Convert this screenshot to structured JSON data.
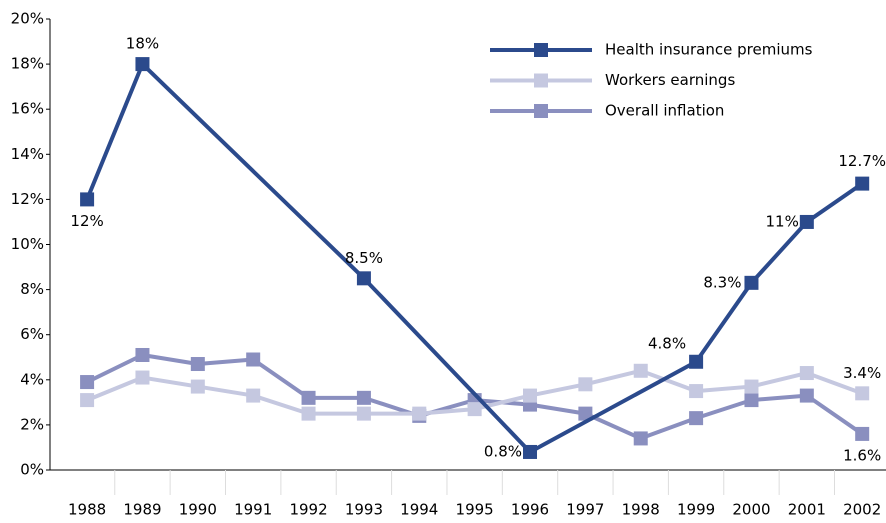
{
  "chart_data": {
    "type": "line",
    "xlim": [
      1987.33,
      2002.43
    ],
    "xticks": [
      1988,
      1989,
      1990,
      1991,
      1992,
      1993,
      1994,
      1995,
      1996,
      1997,
      1998,
      1999,
      2000,
      2001,
      2002
    ],
    "ylim": [
      0,
      20
    ],
    "yticks": [
      {
        "value": 0,
        "label": "0%"
      },
      {
        "value": 2,
        "label": "2%"
      },
      {
        "value": 4,
        "label": "4%"
      },
      {
        "value": 6,
        "label": "6%"
      },
      {
        "value": 8,
        "label": "8%"
      },
      {
        "value": 10,
        "label": "10%"
      },
      {
        "value": 12,
        "label": "12%"
      },
      {
        "value": 14,
        "label": "14%"
      },
      {
        "value": 16,
        "label": "16%"
      },
      {
        "value": 18,
        "label": "18%"
      },
      {
        "value": 20,
        "label": "20%"
      }
    ],
    "legend": "top-right",
    "series": [
      {
        "name": "Health insurance premiums",
        "color": "#2b4a8c",
        "x": [
          1988,
          1989,
          1993,
          1996,
          1999,
          2000,
          2001,
          2002
        ],
        "values": [
          12,
          18,
          8.5,
          0.8,
          4.8,
          8.3,
          11,
          12.7
        ],
        "value_labels": [
          "12%",
          "18%",
          "8.5%",
          "0.8%",
          "4.8%",
          "8.3%",
          "11%",
          "12.7%"
        ]
      },
      {
        "name": "Workers earnings",
        "color": "#c5c8e0",
        "x": [
          1988,
          1989,
          1990,
          1991,
          1992,
          1993,
          1994,
          1995,
          1996,
          1997,
          1998,
          1999,
          2000,
          2001,
          2002
        ],
        "values": [
          3.1,
          4.1,
          3.7,
          3.3,
          2.5,
          2.5,
          2.5,
          2.7,
          3.3,
          3.8,
          4.4,
          3.5,
          3.7,
          4.3,
          3.4
        ],
        "value_labels": [
          null,
          null,
          null,
          null,
          null,
          null,
          null,
          null,
          null,
          null,
          null,
          null,
          null,
          null,
          "3.4%"
        ]
      },
      {
        "name": "Overall inflation",
        "color": "#8a8fbf",
        "x": [
          1988,
          1989,
          1990,
          1991,
          1992,
          1993,
          1994,
          1995,
          1996,
          1997,
          1998,
          1999,
          2000,
          2001,
          2002
        ],
        "values": [
          3.9,
          5.1,
          4.7,
          4.9,
          3.2,
          3.2,
          2.4,
          3.1,
          2.9,
          2.5,
          1.4,
          2.3,
          3.1,
          3.3,
          1.6
        ],
        "value_labels": [
          null,
          null,
          null,
          null,
          null,
          null,
          null,
          null,
          null,
          null,
          null,
          null,
          null,
          null,
          "1.6%"
        ]
      }
    ]
  }
}
